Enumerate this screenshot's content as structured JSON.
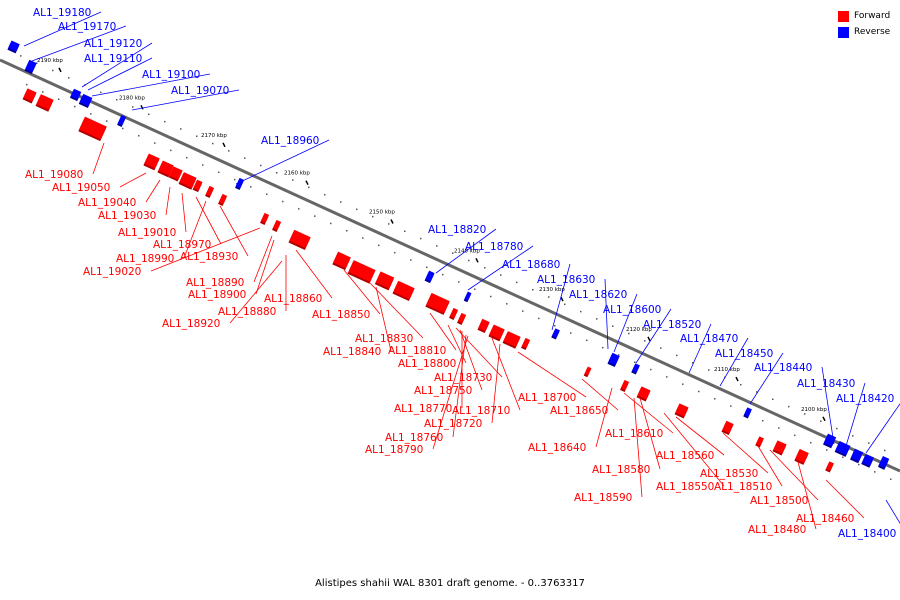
{
  "caption": "Alistipes shahii WAL 8301 draft genome. - 0..3763317",
  "legend": {
    "forward": {
      "label": "Forward",
      "color": "#ff0000"
    },
    "reverse": {
      "label": "Reverse",
      "color": "#0000ff"
    }
  },
  "axis_color": "#666666",
  "ticks": [
    "2190 kbp",
    "2180 kbp",
    "2170 kbp",
    "2160 kbp",
    "2150 kbp",
    "2140 kbp",
    "2130 kbp",
    "2120 kbp",
    "2110 kbp",
    "2100 kbp"
  ],
  "forward_genes": [
    "AL1_19080",
    "AL1_19050",
    "AL1_19040",
    "AL1_19030",
    "AL1_19010",
    "AL1_18970",
    "AL1_18990",
    "AL1_18930",
    "AL1_19020",
    "AL1_18890",
    "AL1_18900",
    "AL1_18860",
    "AL1_18880",
    "AL1_18920",
    "AL1_18850",
    "AL1_18830",
    "AL1_18840",
    "AL1_18810",
    "AL1_18800",
    "AL1_18730",
    "AL1_18750",
    "AL1_18770",
    "AL1_18710",
    "AL1_18700",
    "AL1_18760",
    "AL1_18720",
    "AL1_18790",
    "AL1_18650",
    "AL1_18610",
    "AL1_18640",
    "AL1_18560",
    "AL1_18580",
    "AL1_18550",
    "AL1_18590",
    "AL1_18530",
    "AL1_18510",
    "AL1_18500",
    "AL1_18480",
    "AL1_18460"
  ],
  "reverse_genes": [
    "AL1_19180",
    "AL1_19170",
    "AL1_19120",
    "AL1_19110",
    "AL1_19100",
    "AL1_19070",
    "AL1_18960",
    "AL1_18820",
    "AL1_18780",
    "AL1_18680",
    "AL1_18630",
    "AL1_18620",
    "AL1_18600",
    "AL1_18520",
    "AL1_18470",
    "AL1_18450",
    "AL1_18440",
    "AL1_18430",
    "AL1_18420",
    "AL1_18400"
  ]
}
